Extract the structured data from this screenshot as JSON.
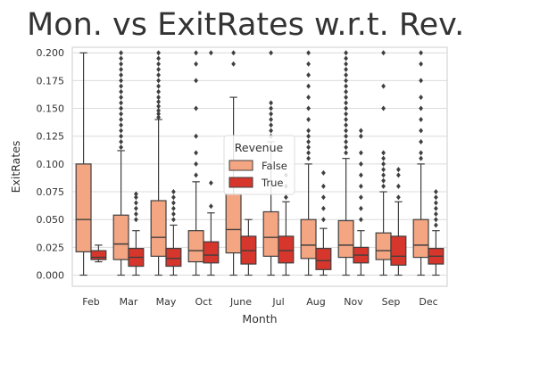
{
  "chart_data": {
    "type": "boxplot",
    "title": "Mon. vs ExitRates w.r.t. Rev.",
    "xlabel": "Month",
    "ylabel": "ExitRates",
    "ylim": [
      -0.01,
      0.205
    ],
    "yticks": [
      0.0,
      0.025,
      0.05,
      0.075,
      0.1,
      0.125,
      0.15,
      0.175,
      0.2
    ],
    "ytick_labels": [
      "0.000",
      "0.025",
      "0.050",
      "0.075",
      "0.100",
      "0.125",
      "0.150",
      "0.175",
      "0.200"
    ],
    "categories": [
      "Feb",
      "Mar",
      "May",
      "Oct",
      "June",
      "Jul",
      "Aug",
      "Nov",
      "Sep",
      "Dec"
    ],
    "grid": true,
    "legend": {
      "title": "Revenue",
      "placement": "center",
      "entries": [
        {
          "label": "False",
          "color": "#f4a582"
        },
        {
          "label": "True",
          "color": "#d6362b"
        }
      ]
    },
    "series": [
      {
        "name": "False",
        "color": "#f4a582",
        "boxes": [
          {
            "whislo": 0.0,
            "q1": 0.021,
            "med": 0.05,
            "q3": 0.1,
            "whishi": 0.2,
            "fliers": []
          },
          {
            "whislo": 0.0,
            "q1": 0.014,
            "med": 0.028,
            "q3": 0.054,
            "whishi": 0.112,
            "fliers": [
              0.115,
              0.12,
              0.125,
              0.13,
              0.135,
              0.14,
              0.145,
              0.15,
              0.155,
              0.16,
              0.165,
              0.17,
              0.175,
              0.18,
              0.185,
              0.19,
              0.195,
              0.2
            ]
          },
          {
            "whislo": 0.0,
            "q1": 0.017,
            "med": 0.034,
            "q3": 0.067,
            "whishi": 0.14,
            "fliers": [
              0.142,
              0.145,
              0.148,
              0.152,
              0.156,
              0.16,
              0.165,
              0.17,
              0.175,
              0.18,
              0.185,
              0.19,
              0.195,
              0.2
            ]
          },
          {
            "whislo": 0.0,
            "q1": 0.012,
            "med": 0.022,
            "q3": 0.04,
            "whishi": 0.084,
            "fliers": [
              0.09,
              0.1,
              0.11,
              0.125,
              0.15,
              0.175,
              0.19,
              0.2
            ]
          },
          {
            "whislo": 0.0,
            "q1": 0.02,
            "med": 0.041,
            "q3": 0.073,
            "whishi": 0.16,
            "fliers": [
              0.19,
              0.2
            ]
          },
          {
            "whislo": 0.0,
            "q1": 0.017,
            "med": 0.034,
            "q3": 0.057,
            "whishi": 0.12,
            "fliers": [
              0.125,
              0.13,
              0.135,
              0.14,
              0.145,
              0.15,
              0.155,
              0.2
            ]
          },
          {
            "whislo": 0.0,
            "q1": 0.015,
            "med": 0.027,
            "q3": 0.05,
            "whishi": 0.1,
            "fliers": [
              0.105,
              0.11,
              0.115,
              0.12,
              0.125,
              0.13,
              0.14,
              0.15,
              0.16,
              0.17,
              0.18,
              0.19,
              0.2
            ]
          },
          {
            "whislo": 0.0,
            "q1": 0.016,
            "med": 0.027,
            "q3": 0.049,
            "whishi": 0.105,
            "fliers": [
              0.11,
              0.115,
              0.12,
              0.125,
              0.13,
              0.135,
              0.14,
              0.145,
              0.15,
              0.155,
              0.16,
              0.165,
              0.17,
              0.175,
              0.18,
              0.185,
              0.19,
              0.195,
              0.2
            ]
          },
          {
            "whislo": 0.0,
            "q1": 0.014,
            "med": 0.022,
            "q3": 0.038,
            "whishi": 0.075,
            "fliers": [
              0.08,
              0.085,
              0.09,
              0.095,
              0.1,
              0.105,
              0.11,
              0.15,
              0.17,
              0.2
            ]
          },
          {
            "whislo": 0.0,
            "q1": 0.016,
            "med": 0.027,
            "q3": 0.05,
            "whishi": 0.1,
            "fliers": [
              0.105,
              0.11,
              0.12,
              0.13,
              0.14,
              0.15,
              0.16,
              0.175,
              0.19,
              0.2
            ]
          }
        ]
      },
      {
        "name": "True",
        "color": "#d6362b",
        "boxes": [
          {
            "whislo": 0.012,
            "q1": 0.014,
            "med": 0.016,
            "q3": 0.022,
            "whishi": 0.027,
            "fliers": []
          },
          {
            "whislo": 0.0,
            "q1": 0.008,
            "med": 0.016,
            "q3": 0.024,
            "whishi": 0.04,
            "fliers": [
              0.05,
              0.055,
              0.06,
              0.065,
              0.07,
              0.073
            ]
          },
          {
            "whislo": 0.0,
            "q1": 0.008,
            "med": 0.015,
            "q3": 0.024,
            "whishi": 0.045,
            "fliers": [
              0.05,
              0.055,
              0.06,
              0.065,
              0.07,
              0.075
            ]
          },
          {
            "whislo": 0.0,
            "q1": 0.011,
            "med": 0.018,
            "q3": 0.03,
            "whishi": 0.056,
            "fliers": [
              0.062,
              0.083,
              0.2
            ]
          },
          {
            "whislo": 0.0,
            "q1": 0.01,
            "med": 0.022,
            "q3": 0.035,
            "whishi": 0.05,
            "fliers": []
          },
          {
            "whislo": 0.0,
            "q1": 0.011,
            "med": 0.022,
            "q3": 0.035,
            "whishi": 0.066,
            "fliers": [
              0.07,
              0.08,
              0.09
            ]
          },
          {
            "whislo": 0.0,
            "q1": 0.005,
            "med": 0.013,
            "q3": 0.024,
            "whishi": 0.042,
            "fliers": [
              0.05,
              0.06,
              0.07,
              0.08,
              0.092
            ]
          },
          {
            "whislo": 0.0,
            "q1": 0.011,
            "med": 0.018,
            "q3": 0.025,
            "whishi": 0.04,
            "fliers": [
              0.05,
              0.06,
              0.07,
              0.08,
              0.09,
              0.1,
              0.11,
              0.125,
              0.13
            ]
          },
          {
            "whislo": 0.0,
            "q1": 0.009,
            "med": 0.017,
            "q3": 0.035,
            "whishi": 0.066,
            "fliers": [
              0.07,
              0.08,
              0.09,
              0.095
            ]
          },
          {
            "whislo": 0.0,
            "q1": 0.01,
            "med": 0.017,
            "q3": 0.024,
            "whishi": 0.04,
            "fliers": [
              0.045,
              0.05,
              0.055,
              0.06,
              0.065,
              0.07,
              0.075
            ]
          }
        ]
      }
    ]
  }
}
